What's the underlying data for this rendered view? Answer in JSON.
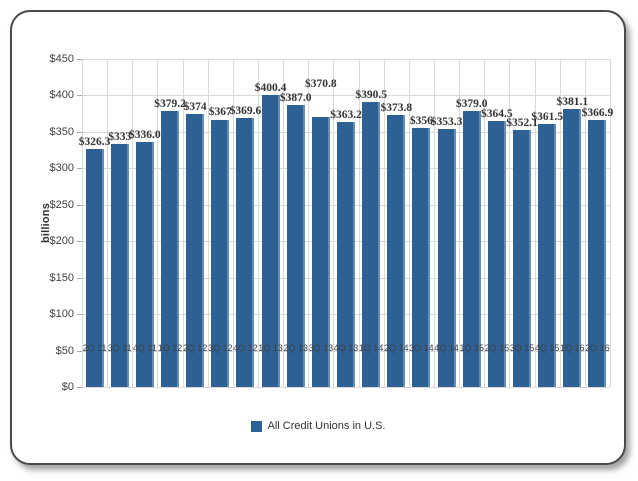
{
  "chart_data": {
    "type": "bar",
    "title": "",
    "xlabel": "",
    "ylabel": "billions",
    "categories": [
      "2Q 11",
      "3Q 11",
      "4Q 11",
      "1Q 12",
      "2Q 12",
      "3Q 12",
      "4Q 12",
      "1Q 13",
      "2Q 13",
      "3Q 13",
      "4Q 13",
      "1Q 14",
      "2Q 14",
      "3Q 14",
      "4Q 14",
      "1Q 15",
      "2Q 15",
      "3Q 15",
      "4Q 15",
      "1Q 16",
      "2Q 16"
    ],
    "series": [
      {
        "name": "All Credit Unions in U.S.",
        "values": [
          326.3,
          333,
          336.0,
          379.2,
          374,
          367,
          369.6,
          400.4,
          387.0,
          370.8,
          363.2,
          390.5,
          373.8,
          356,
          353.3,
          379.0,
          364.5,
          352.1,
          361.5,
          381.1,
          366.9
        ],
        "data_labels": [
          "$326.3",
          "$333",
          "$336.0",
          "$379.2",
          "$374",
          "$367",
          "$369.6",
          "$400.4",
          "$387.0",
          "$370.8",
          "$363.2",
          "$390.5",
          "$373.8",
          "$356",
          "$353.3",
          "$379.0",
          "$364.5",
          "$352.1",
          "$361.5",
          "$381.1",
          "$366.9"
        ]
      }
    ],
    "y_ticks": [
      "$0",
      "$50",
      "$100",
      "$150",
      "$200",
      "$250",
      "$300",
      "$350",
      "$400",
      "$450"
    ],
    "ylim": [
      0,
      450
    ],
    "grid": true,
    "legend_position": "bottom",
    "colors": {
      "bar": "#2d6195",
      "gridline": "#d9d9d9",
      "axis_line": "#7f7f7f",
      "axis_text": "#404040",
      "data_label": "#333333",
      "frame_border": "#4a4a4a"
    }
  }
}
